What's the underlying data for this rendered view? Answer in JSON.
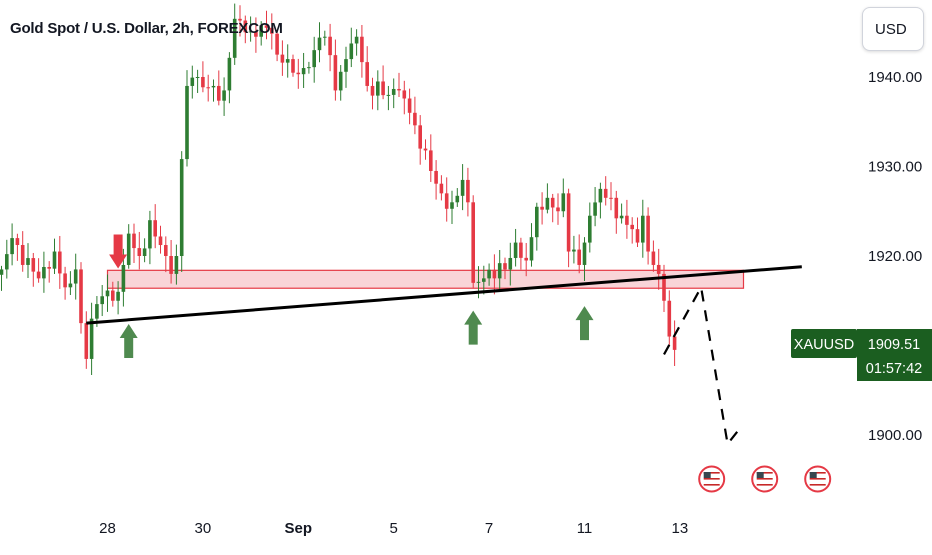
{
  "header": {
    "title": "Gold Spot / U.S. Dollar, 2h, FOREXCOM",
    "currency": "USD"
  },
  "price_tag": {
    "symbol": "XAUUSD",
    "price": "1909.51",
    "countdown": "01:57:42",
    "color": "#1b5e20"
  },
  "colors": {
    "up": "#2e7d32",
    "down": "#e53945",
    "zone_fill": "#f7c6cb",
    "zone_stroke": "#e53945",
    "trendline": "#000000",
    "arrow_up": "#4f8a4f",
    "arrow_down": "#e53945"
  },
  "chart_data": {
    "type": "candlestick",
    "title": "Gold Spot / U.S. Dollar, 2h, FOREXCOM",
    "symbol": "XAUUSD",
    "timeframe": "2h",
    "y_axis": {
      "ticks": [
        "1900.00",
        "1910.00",
        "1920.00",
        "1930.00",
        "1940.00"
      ],
      "tick_values": [
        1900,
        1910,
        1920,
        1930,
        1940
      ],
      "range": [
        1888,
        1948
      ],
      "side": "right"
    },
    "x_axis": {
      "labels": [
        "28",
        "30",
        "Sep",
        "5",
        "7",
        "11",
        "13"
      ],
      "label_index": [
        20,
        38,
        56,
        74,
        92,
        110,
        128
      ],
      "range": [
        0,
        150
      ]
    },
    "keypoints": [
      [
        0,
        1918.5
      ],
      [
        2,
        1922.0
      ],
      [
        4,
        1919.0
      ],
      [
        7,
        1917.5
      ],
      [
        10,
        1920.5
      ],
      [
        12,
        1916.5
      ],
      [
        14,
        1918.5
      ],
      [
        15,
        1912.5
      ],
      [
        16,
        1908.5
      ],
      [
        17,
        1913.0
      ],
      [
        19,
        1915.5
      ],
      [
        21,
        1915.0
      ],
      [
        22,
        1916.0
      ],
      [
        24,
        1922.5
      ],
      [
        26,
        1920.0
      ],
      [
        28,
        1924.0
      ],
      [
        31,
        1920.0
      ],
      [
        32,
        1918.0
      ],
      [
        33,
        1920.0
      ],
      [
        35,
        1939.0
      ],
      [
        37,
        1940.0
      ],
      [
        40,
        1939.0
      ],
      [
        42,
        1938.5
      ],
      [
        44,
        1946.5
      ],
      [
        46,
        1945.0
      ],
      [
        48,
        1944.5
      ],
      [
        50,
        1945.5
      ],
      [
        52,
        1942.5
      ],
      [
        54,
        1942.0
      ],
      [
        57,
        1941.0
      ],
      [
        59,
        1943.0
      ],
      [
        61,
        1944.5
      ],
      [
        63,
        1938.5
      ],
      [
        65,
        1942.0
      ],
      [
        67,
        1944.5
      ],
      [
        69,
        1939.0
      ],
      [
        71,
        1939.5
      ],
      [
        73,
        1938.0
      ],
      [
        75,
        1938.5
      ],
      [
        77,
        1936.0
      ],
      [
        79,
        1932.0
      ],
      [
        81,
        1929.5
      ],
      [
        83,
        1927.0
      ],
      [
        85,
        1926.0
      ],
      [
        87,
        1928.5
      ],
      [
        88,
        1926.0
      ],
      [
        89,
        1917.0
      ],
      [
        91,
        1917.5
      ],
      [
        93,
        1917.5
      ],
      [
        95,
        1918.5
      ],
      [
        97,
        1921.5
      ],
      [
        99,
        1919.5
      ],
      [
        101,
        1925.5
      ],
      [
        103,
        1926.5
      ],
      [
        105,
        1925.0
      ],
      [
        106,
        1927.0
      ],
      [
        107,
        1920.5
      ],
      [
        109,
        1919.0
      ],
      [
        110,
        1921.5
      ],
      [
        111,
        1924.5
      ],
      [
        113,
        1927.5
      ],
      [
        115,
        1926.5
      ],
      [
        117,
        1924.5
      ],
      [
        119,
        1923.0
      ],
      [
        120,
        1921.5
      ],
      [
        121,
        1924.5
      ],
      [
        122,
        1920.5
      ],
      [
        123,
        1919.0
      ],
      [
        124,
        1918.0
      ],
      [
        125,
        1915.0
      ],
      [
        126,
        1911.0
      ],
      [
        127,
        1909.51
      ]
    ],
    "support_zone": {
      "x_start": 20,
      "x_end": 140,
      "y_low": 1916.4,
      "y_high": 1918.4
    },
    "trendline": {
      "x1": 16,
      "y1": 1912.5,
      "x2": 151,
      "y2": 1918.8
    },
    "projection_path": [
      [
        125,
        1909
      ],
      [
        132,
        1916.5
      ],
      [
        137,
        1899
      ],
      [
        139,
        1900.5
      ]
    ],
    "markers": [
      {
        "type": "arrow-down",
        "x": 22,
        "y": 1920.5
      },
      {
        "type": "arrow-up",
        "x": 24,
        "y": 1910.5
      },
      {
        "type": "arrow-up",
        "x": 89,
        "y": 1912.0
      },
      {
        "type": "arrow-up",
        "x": 110,
        "y": 1912.5
      }
    ],
    "events": [
      {
        "icon": "us-flag-icon",
        "x": 134
      },
      {
        "icon": "us-flag-icon",
        "x": 144
      },
      {
        "icon": "us-flag-icon",
        "x": 154
      }
    ]
  }
}
